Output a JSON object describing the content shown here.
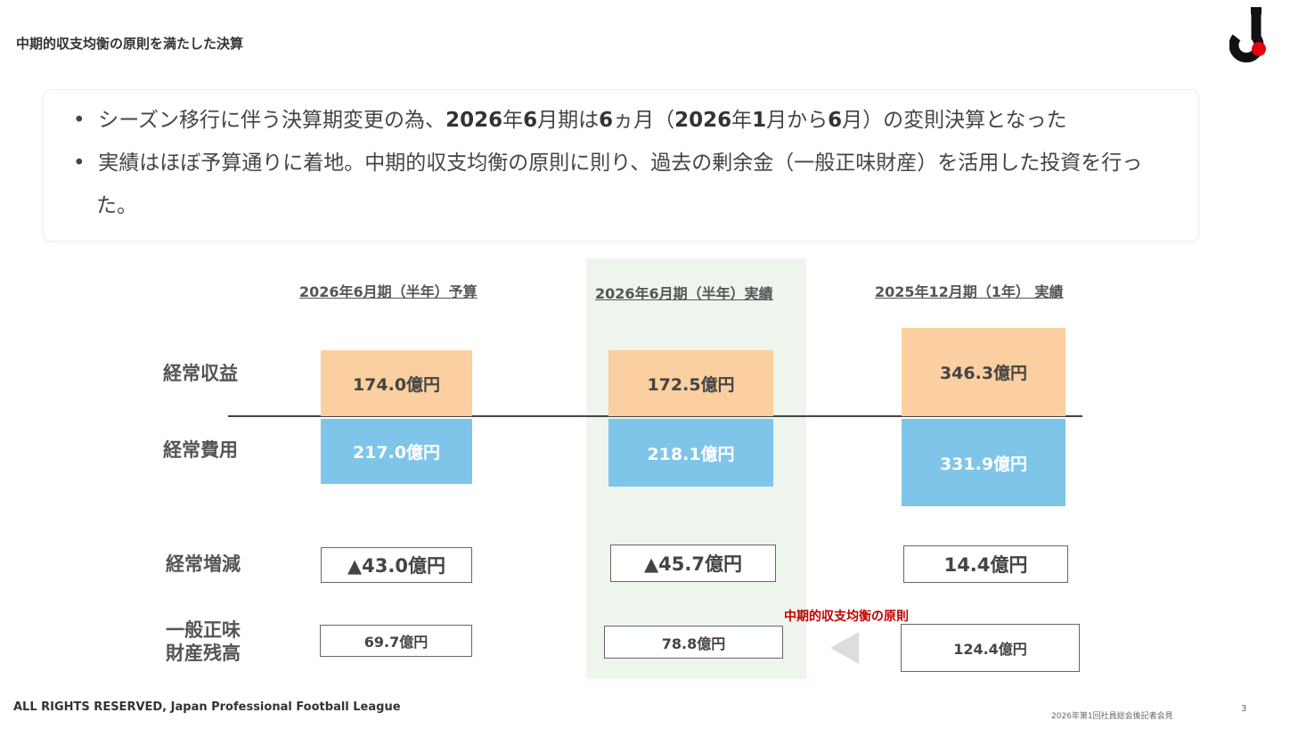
{
  "header": {
    "title": "中期的収支均衡の原則を満たした決算"
  },
  "bullets": [
    {
      "parts": [
        "シーズン移行に伴う決算期変更の為、",
        "2026",
        "年",
        "6",
        "月期は",
        "6",
        "ヵ月（",
        "2026",
        "年",
        "1",
        "月から",
        "6",
        "月）の変則決算となった"
      ]
    },
    {
      "parts": [
        "実績はほぼ予算通りに着地。中期的収支均衡の原則に則り、過去の剰余金（一般正味財産）を活用した投資を行った。"
      ]
    }
  ],
  "row_labels": [
    "経常収益",
    "経常費用",
    "経常増減",
    "一般正味\n財産残高"
  ],
  "columns": [
    {
      "heading": "2026年6月期（半年）予算",
      "revenue": "174.0億円",
      "expense": "217.0億円",
      "change": "▲43.0億円",
      "balance": "69.7億円"
    },
    {
      "heading": "2026年6月期（半年）実績",
      "revenue": "172.5億円",
      "expense": "218.1億円",
      "change": "▲45.7億円",
      "balance": "78.8億円"
    },
    {
      "heading": "2025年12月期（1年） 実績",
      "revenue": "346.3億円",
      "expense": "331.9億円",
      "change": "14.4億円",
      "balance": "124.4億円"
    }
  ],
  "annotation": "中期的収支均衡の原則",
  "footer": {
    "copyright": "ALL RIGHTS RESERVED, Japan Professional Football League",
    "event": "2026年第1回社員総会後記者会見",
    "page": "3"
  }
}
